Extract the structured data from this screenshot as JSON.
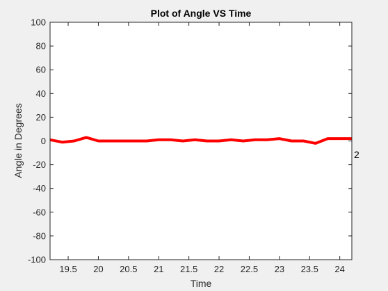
{
  "chart_data": {
    "type": "line",
    "title": "Plot of Angle VS Time",
    "xlabel": "Time",
    "ylabel": "Angle in Degrees",
    "xlim": [
      19.2,
      24.2
    ],
    "ylim": [
      -100,
      100
    ],
    "xticks": [
      19.5,
      20,
      20.5,
      21,
      21.5,
      22,
      22.5,
      23,
      23.5,
      24
    ],
    "xtick_labels": [
      "19.5",
      "20",
      "20.5",
      "21",
      "21.5",
      "22",
      "22.5",
      "23",
      "23.5",
      "24"
    ],
    "yticks": [
      100,
      80,
      60,
      40,
      20,
      0,
      -20,
      -40,
      -60,
      -80,
      -100
    ],
    "ytick_labels": [
      "100",
      "80",
      "60",
      "40",
      "20",
      "0",
      "-20",
      "-40",
      "-60",
      "-80",
      "-100"
    ],
    "grid": false,
    "annotation": "2",
    "series": [
      {
        "color": "#ff0000",
        "x": [
          19.2,
          19.4,
          19.6,
          19.8,
          20.0,
          20.2,
          20.4,
          20.6,
          20.8,
          21.0,
          21.2,
          21.4,
          21.6,
          21.8,
          22.0,
          22.2,
          22.4,
          22.6,
          22.8,
          23.0,
          23.2,
          23.4,
          23.6,
          23.8,
          24.0,
          24.2
        ],
        "y": [
          1,
          -1,
          0,
          3,
          0,
          0,
          0,
          0,
          0,
          1,
          1,
          0,
          1,
          0,
          0,
          1,
          0,
          1,
          1,
          2,
          0,
          0,
          -2,
          2,
          2,
          2
        ]
      }
    ]
  }
}
